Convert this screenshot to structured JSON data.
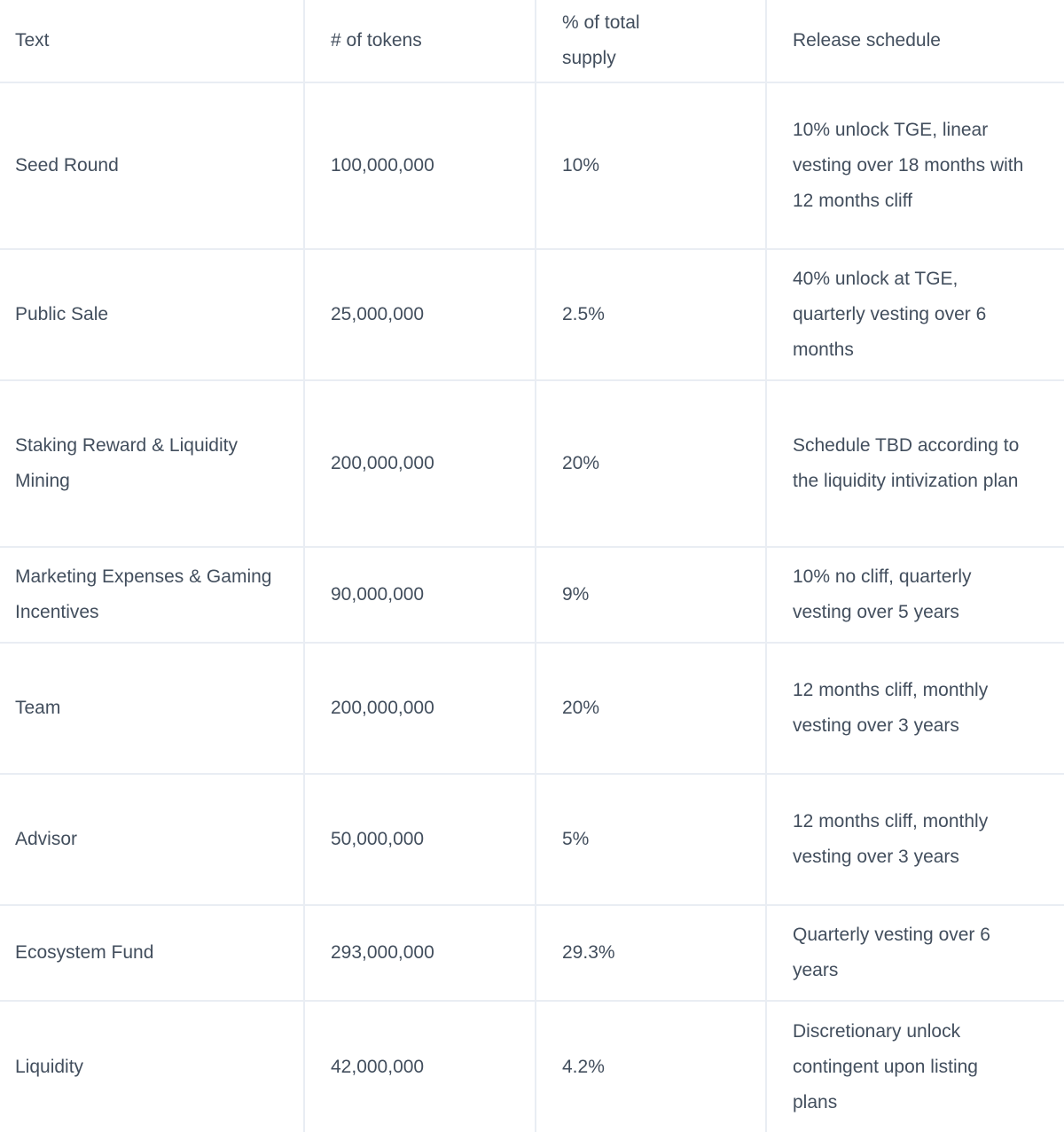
{
  "colors": {
    "background": "#ffffff",
    "grid_border": "#e9edf3",
    "text": "#424e5d"
  },
  "table": {
    "columns": [
      {
        "label": "Text"
      },
      {
        "label": "# of tokens"
      },
      {
        "label": "% of total supply"
      },
      {
        "label": "Release schedule"
      }
    ],
    "rows": [
      {
        "text": "Seed Round",
        "tokens": "100,000,000",
        "percent": "10%",
        "schedule": "10% unlock TGE, linear vesting over 18 months with 12 months cliff"
      },
      {
        "text": "Public Sale",
        "tokens": "25,000,000",
        "percent": "2.5%",
        "schedule": "40% unlock at TGE, quarterly vesting over 6 months"
      },
      {
        "text": "Staking Reward & Liquidity Mining",
        "tokens": "200,000,000",
        "percent": "20%",
        "schedule": "Schedule TBD according to the liquidity intivization plan"
      },
      {
        "text": "Marketing Expenses & Gaming Incentives",
        "tokens": "90,000,000",
        "percent": "9%",
        "schedule": "10% no cliff, quarterly vesting over 5 years"
      },
      {
        "text": "Team",
        "tokens": "200,000,000",
        "percent": "20%",
        "schedule": "12 months cliff, monthly vesting over 3 years"
      },
      {
        "text": "Advisor",
        "tokens": "50,000,000",
        "percent": "5%",
        "schedule": "12 months cliff, monthly vesting over 3 years"
      },
      {
        "text": "Ecosystem Fund",
        "tokens": "293,000,000",
        "percent": "29.3%",
        "schedule": "Quarterly vesting over 6 years"
      },
      {
        "text": "Liquidity",
        "tokens": "42,000,000",
        "percent": "4.2%",
        "schedule": "Discretionary unlock contingent upon listing plans"
      }
    ]
  }
}
